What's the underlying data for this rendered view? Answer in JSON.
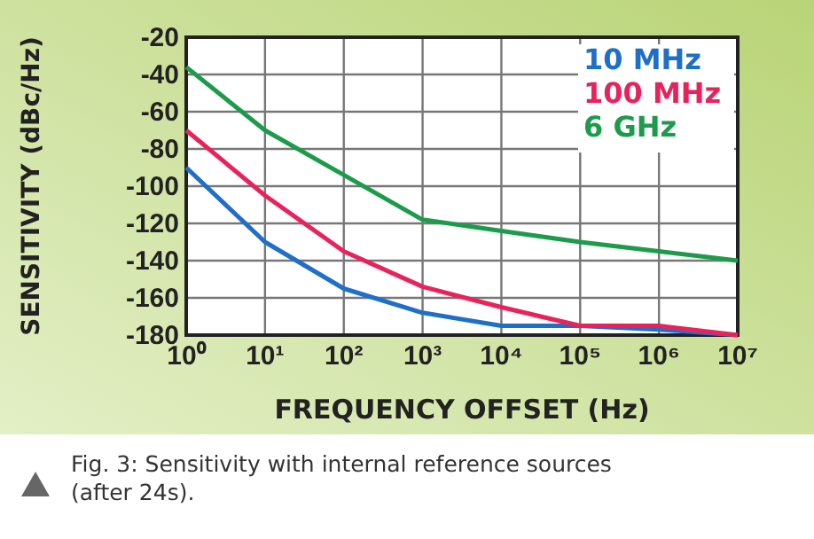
{
  "chart_data": {
    "type": "line",
    "xlabel": "FREQUENCY OFFSET (Hz)",
    "ylabel": "SENSITIVITY (dBc/Hz)",
    "x": [
      1,
      10,
      100,
      1000,
      10000,
      100000,
      1000000,
      10000000
    ],
    "series": [
      {
        "name": "10 MHz",
        "color": "#1f6fc8",
        "values": [
          -90,
          -130,
          -155,
          -168,
          -175,
          -175,
          -177,
          -180
        ]
      },
      {
        "name": "100 MHz",
        "color": "#e8235c",
        "values": [
          -70,
          -105,
          -135,
          -154,
          -165,
          -175,
          -175,
          -180
        ]
      },
      {
        "name": "6 GHz",
        "color": "#1c9c4a",
        "values": [
          -36,
          -70,
          -94,
          -118,
          -124,
          -130,
          -135,
          -140
        ]
      }
    ],
    "log": "x",
    "xlim": [
      1,
      10000000
    ],
    "xticks": [
      {
        "value": 1,
        "label": "10⁰"
      },
      {
        "value": 10,
        "label": "10¹"
      },
      {
        "value": 100,
        "label": "10²"
      },
      {
        "value": 1000,
        "label": "10³"
      },
      {
        "value": 10000,
        "label": "10⁴"
      },
      {
        "value": 100000,
        "label": "10⁵"
      },
      {
        "value": 1000000,
        "label": "10⁶"
      },
      {
        "value": 10000000,
        "label": "10⁷"
      }
    ],
    "ylim": [
      -180,
      -20
    ],
    "yticks": [
      -180,
      -160,
      -140,
      -120,
      -100,
      -80,
      -60,
      -40,
      -20
    ],
    "grid": true,
    "legend": "top right",
    "marker": "none",
    "line_style": "solid",
    "annotations": [
      "Fig. 3: Sensitivity with internal reference sources (after 24s)."
    ]
  }
}
